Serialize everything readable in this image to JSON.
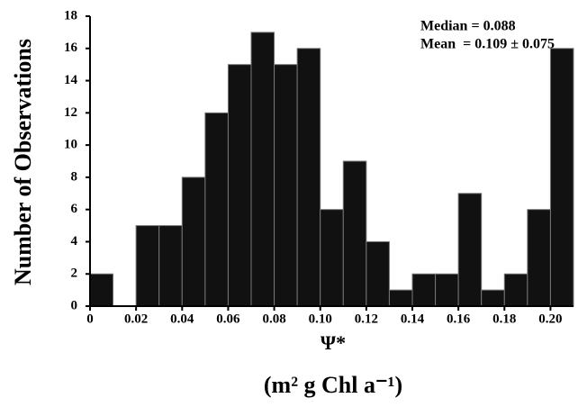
{
  "chart_data": {
    "type": "histogram",
    "y_label": "Number of Observations",
    "x_label": "Ψ*",
    "x_label_units": "(m² g Chl a⁻¹)",
    "annotations": [
      "Median = 0.088",
      "Mean  = 0.109 ± 0.075"
    ],
    "bins": [
      0,
      0.01,
      0.02,
      0.03,
      0.04,
      0.05,
      0.06,
      0.07,
      0.08,
      0.09,
      0.1,
      0.11,
      0.12,
      0.13,
      0.14,
      0.15,
      0.16,
      0.17,
      0.18,
      0.19,
      0.2,
      0.21
    ],
    "counts": [
      2,
      0,
      5,
      5,
      8,
      12,
      15,
      17,
      15,
      16,
      6,
      9,
      4,
      1,
      2,
      2,
      7,
      1,
      2,
      6,
      16
    ],
    "color": "#111111",
    "xlim": [
      0,
      0.21
    ],
    "ylim": [
      0,
      18
    ],
    "xticks": [
      0,
      0.02,
      0.04,
      0.06,
      0.08,
      {
        "value": 0.1,
        "label": "0.10"
      },
      0.12,
      0.14,
      0.16,
      0.18,
      {
        "value": 0.2,
        "label": "0.20"
      }
    ],
    "yticks": [
      0,
      2,
      4,
      6,
      8,
      10,
      12,
      14,
      16,
      18
    ]
  }
}
